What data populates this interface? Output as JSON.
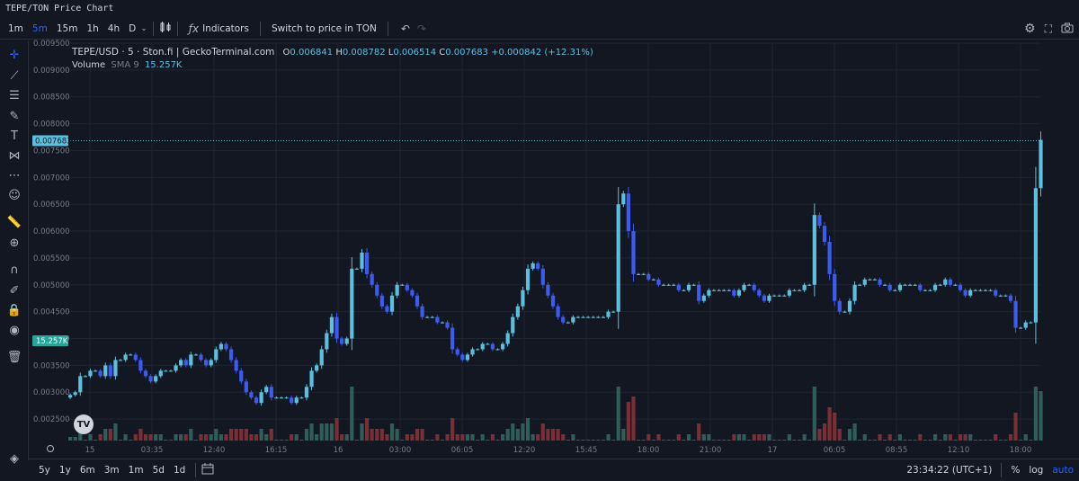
{
  "window": {
    "title": "TEPE/TON Price Chart"
  },
  "toolbar": {
    "timeframes": [
      "1m",
      "5m",
      "15m",
      "1h",
      "4h",
      "D"
    ],
    "active_timeframe": "5m",
    "indicators_label": "Indicators",
    "switch_label": "Switch to price in TON"
  },
  "legend": {
    "symbol": "TEPE/USD · 5 · Ston.fi | GeckoTerminal.com",
    "o_label": "O",
    "o": "0.006841",
    "h_label": "H",
    "h": "0.008782",
    "l_label": "L",
    "l": "0.006514",
    "c_label": "C",
    "c": "0.007683",
    "change": "+0.000842 (+12.31%)",
    "volume_label": "Volume",
    "volume_sma": "SMA 9",
    "volume_value": "15.257K"
  },
  "bottom": {
    "ranges": [
      "5y",
      "1y",
      "6m",
      "3m",
      "1m",
      "5d",
      "1d"
    ],
    "clock": "23:34:22 (UTC+1)",
    "percent_label": "%",
    "log_label": "log",
    "auto_label": "auto"
  },
  "colors": {
    "up": "#5cbfde",
    "down": "#3d5af1",
    "vol_up": "#2f5d58",
    "vol_down": "#7a2e35",
    "grid": "#1f2433",
    "background": "#131722",
    "accent": "#2962ff"
  },
  "chart_data": {
    "type": "candlestick",
    "y_ticks": [
      "0.009500",
      "0.009000",
      "0.008500",
      "0.008000",
      "0.007500",
      "0.007000",
      "0.006500",
      "0.006000",
      "0.005500",
      "0.005000",
      "0.004500",
      "0.004000",
      "0.003500",
      "0.003000",
      "0.002500"
    ],
    "x_ticks": [
      "15",
      "03:35",
      "12:40",
      "16:15",
      "16",
      "03:00",
      "06:05",
      "12:20",
      "15:45",
      "18:00",
      "21:00",
      "17",
      "06:05",
      "08:55",
      "12:10",
      "18:00"
    ],
    "ylim": [
      0.0021,
      0.0095
    ],
    "grid": true,
    "last_price": "0.007683",
    "volume_label": "15.257K",
    "closes": [
      0.00295,
      0.003,
      0.0033,
      0.0033,
      0.0034,
      0.0034,
      0.0033,
      0.0035,
      0.0033,
      0.0036,
      0.0036,
      0.0037,
      0.0037,
      0.0036,
      0.0034,
      0.0033,
      0.0032,
      0.0033,
      0.0034,
      0.0034,
      0.0034,
      0.0035,
      0.0036,
      0.0035,
      0.0037,
      0.0037,
      0.0036,
      0.0035,
      0.0036,
      0.0038,
      0.0039,
      0.0038,
      0.0036,
      0.0034,
      0.0032,
      0.003,
      0.0029,
      0.0028,
      0.003,
      0.0031,
      0.0029,
      0.0029,
      0.0029,
      0.0029,
      0.0028,
      0.0029,
      0.0029,
      0.0031,
      0.0034,
      0.0035,
      0.0038,
      0.0041,
      0.0044,
      0.004,
      0.0039,
      0.004,
      0.0053,
      0.0053,
      0.0056,
      0.0052,
      0.005,
      0.0048,
      0.0046,
      0.0045,
      0.0048,
      0.005,
      0.005,
      0.0049,
      0.0048,
      0.0046,
      0.0044,
      0.0044,
      0.0044,
      0.0043,
      0.0043,
      0.0042,
      0.0038,
      0.0037,
      0.0036,
      0.0037,
      0.0038,
      0.0038,
      0.0039,
      0.0039,
      0.0038,
      0.0038,
      0.0039,
      0.0041,
      0.0044,
      0.0046,
      0.0049,
      0.0053,
      0.0054,
      0.0053,
      0.005,
      0.0048,
      0.0046,
      0.0044,
      0.0043,
      0.0043,
      0.0044,
      0.0044,
      0.0044,
      0.0044,
      0.0044,
      0.0044,
      0.0044,
      0.0045,
      0.0045,
      0.0065,
      0.0067,
      0.006,
      0.0052,
      0.0052,
      0.0052,
      0.0051,
      0.0051,
      0.005,
      0.005,
      0.005,
      0.005,
      0.0049,
      0.0049,
      0.005,
      0.005,
      0.0047,
      0.0048,
      0.0049,
      0.0049,
      0.0049,
      0.0049,
      0.0049,
      0.0048,
      0.0049,
      0.005,
      0.005,
      0.0049,
      0.0048,
      0.0047,
      0.0048,
      0.0048,
      0.0048,
      0.0048,
      0.0049,
      0.0049,
      0.0049,
      0.005,
      0.005,
      0.0063,
      0.0061,
      0.0058,
      0.0052,
      0.0047,
      0.0045,
      0.0045,
      0.0047,
      0.005,
      0.005,
      0.0051,
      0.0051,
      0.0051,
      0.005,
      0.005,
      0.0049,
      0.0049,
      0.005,
      0.005,
      0.005,
      0.005,
      0.0049,
      0.0049,
      0.0049,
      0.005,
      0.005,
      0.0051,
      0.005,
      0.005,
      0.0049,
      0.0048,
      0.0049,
      0.0049,
      0.0049,
      0.0049,
      0.0049,
      0.0048,
      0.0048,
      0.0048,
      0.0047,
      0.0042,
      0.0042,
      0.0043,
      0.0043,
      0.0068,
      0.0077
    ]
  }
}
